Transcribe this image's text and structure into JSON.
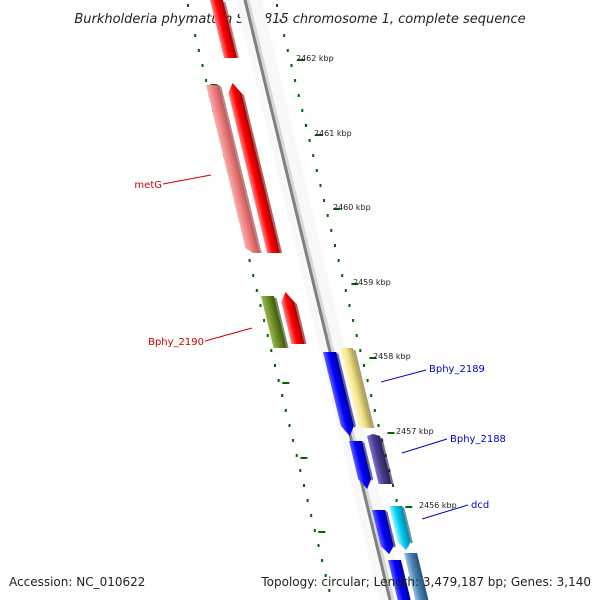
{
  "title": "Burkholderia phymatum STM815 chromosome 1, complete sequence",
  "footer": {
    "accession": "Accession: NC_010622",
    "summary": "Topology: circular; Length: 3,479,187 bp; Genes: 3,140"
  },
  "ruler_labels": [
    "2462 kbp",
    "2461 kbp",
    "2460 kbp",
    "2459 kbp",
    "2458 kbp",
    "2457 kbp",
    "2456 kbp"
  ],
  "genes": [
    {
      "label": "metG",
      "color": "#cc0000",
      "icon": "callout-line"
    },
    {
      "label": "Bphy_2190",
      "color": "#cc0000",
      "icon": "callout-line"
    },
    {
      "label": "Bphy_2189",
      "color": "#0000cc",
      "icon": "callout-line"
    },
    {
      "label": "Bphy_2188",
      "color": "#0000cc",
      "icon": "callout-line"
    },
    {
      "label": "dcd",
      "color": "#0000cc",
      "icon": "callout-line"
    }
  ],
  "colors": {
    "forward_cds": "#ff0000",
    "reverse_cds": "#0000ff",
    "tick_marks": "#006600",
    "backbone": "#808080"
  }
}
